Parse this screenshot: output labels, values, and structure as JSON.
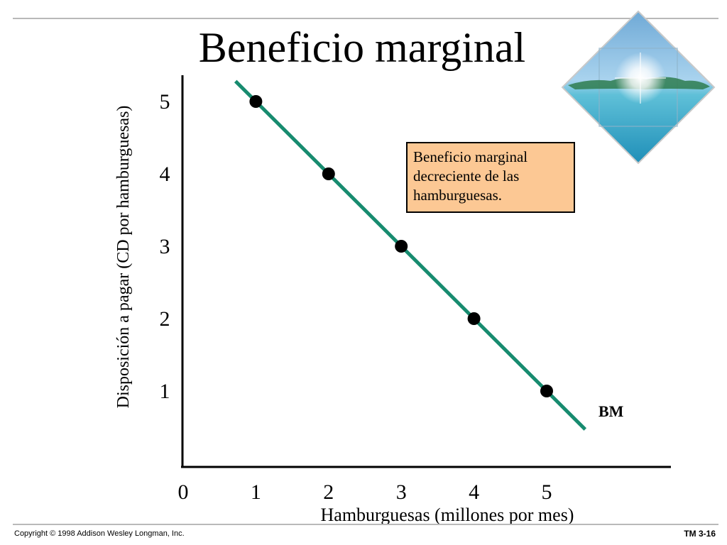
{
  "slide": {
    "title": "Beneficio marginal",
    "note_lines": [
      "Beneficio marginal",
      "decreciente de las",
      "hamburguesas."
    ],
    "footer_left": "Copyright © 1998 Addison Wesley Longman, Inc.",
    "footer_right": "TM 3-16"
  },
  "chart_data": {
    "type": "line",
    "title": "Beneficio marginal",
    "xlabel": "Hamburguesas (millones por mes)",
    "ylabel": "Disposición a pagar (CD por hamburguesas)",
    "x_ticks": [
      "0",
      "1",
      "2",
      "3",
      "4",
      "5"
    ],
    "y_ticks": [
      "1",
      "2",
      "3",
      "4",
      "5"
    ],
    "xlim": [
      0,
      5.6
    ],
    "ylim": [
      0,
      5.6
    ],
    "series": [
      {
        "name": "BM",
        "x": [
          1,
          2,
          3,
          4,
          5
        ],
        "y": [
          5,
          4,
          3,
          2,
          1
        ],
        "color": "#178b6f"
      }
    ],
    "line_extent": {
      "x": [
        0.72,
        5.53
      ],
      "y": [
        5.28,
        0.47
      ]
    },
    "point_color": "#000000",
    "axis_color": "#000000",
    "grid": false
  },
  "colors": {
    "note_background": "#fcc894",
    "rule": "#b9b9b9"
  },
  "icons": {
    "decorative_picture": "tropical-island-diamond-image"
  }
}
